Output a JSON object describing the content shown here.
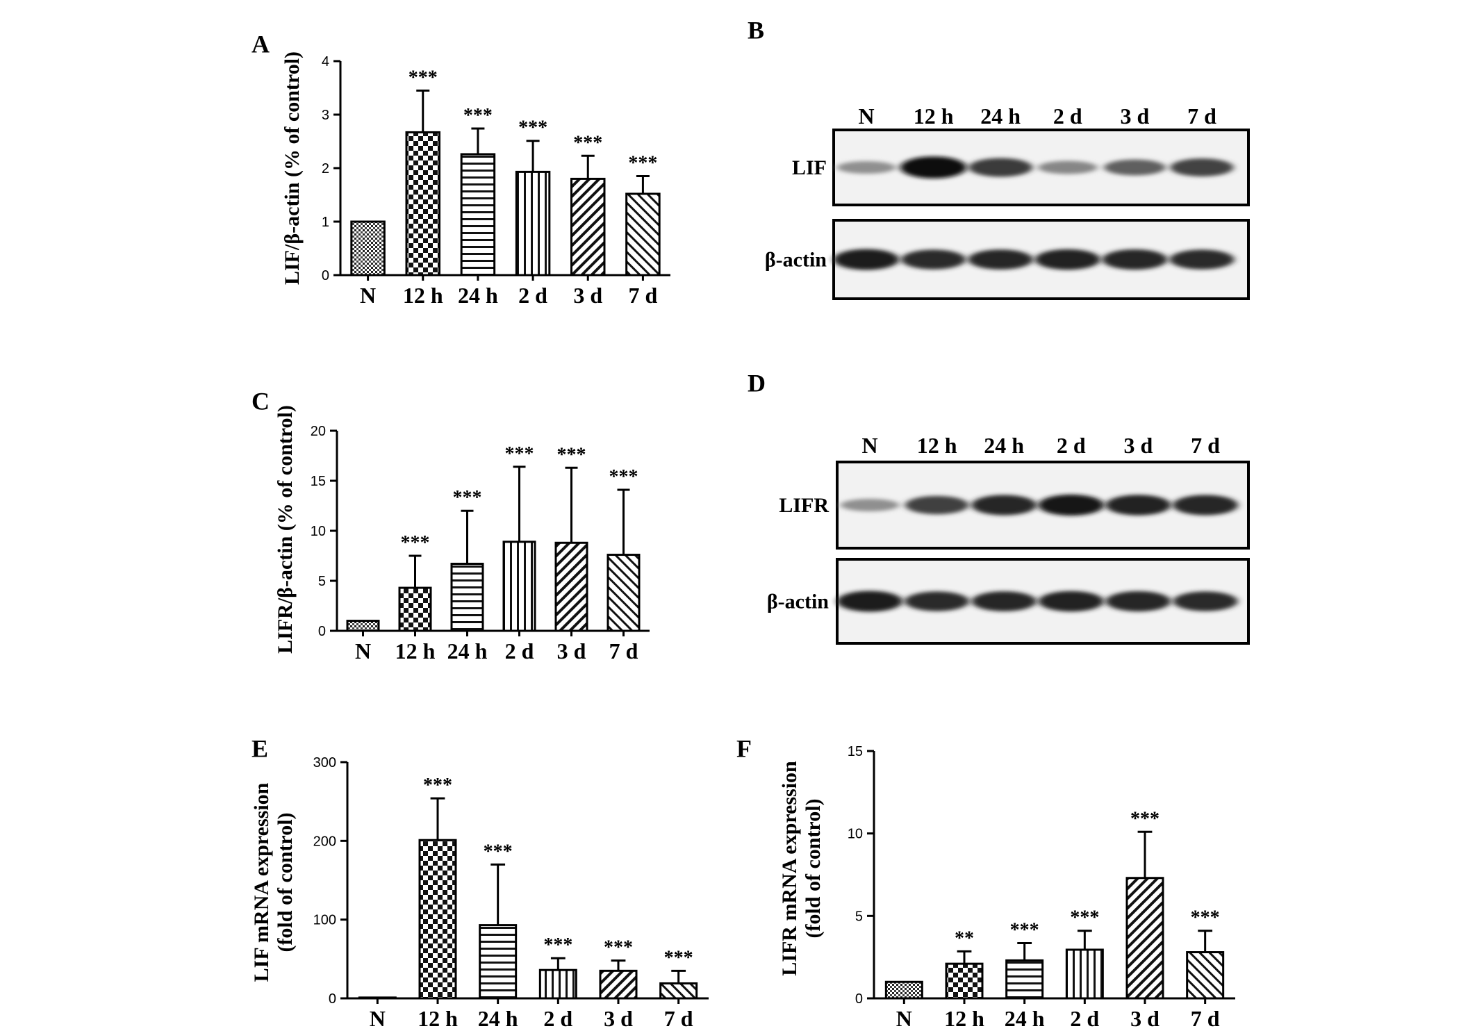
{
  "panels": [
    {
      "letter": "A",
      "chart_data": {
        "type": "bar",
        "categories": [
          "N",
          "12 h",
          "24 h",
          "2 d",
          "3 d",
          "7 d"
        ],
        "values": [
          1.0,
          2.67,
          2.26,
          1.93,
          1.8,
          1.52
        ],
        "errors": [
          0,
          0.78,
          0.48,
          0.58,
          0.43,
          0.33
        ],
        "significance": [
          "",
          "***",
          "***",
          "***",
          "***",
          "***"
        ],
        "patterns": [
          "dots",
          "checker",
          "hlines",
          "vlines",
          "diag",
          "diag-back"
        ],
        "title": "",
        "xlabel": "",
        "ylabel": "LIF/β-actin (% of control)",
        "ylim": [
          0,
          4
        ],
        "yticks": [
          0,
          1,
          2,
          3,
          4
        ],
        "grid": false
      }
    },
    {
      "letter": "C",
      "chart_data": {
        "type": "bar",
        "categories": [
          "N",
          "12 h",
          "24 h",
          "2 d",
          "3 d",
          "7 d"
        ],
        "values": [
          1.0,
          4.3,
          6.7,
          8.9,
          8.8,
          7.6
        ],
        "errors": [
          0,
          3.2,
          5.3,
          7.5,
          7.5,
          6.5
        ],
        "significance": [
          "",
          "***",
          "***",
          "***",
          "***",
          "***"
        ],
        "patterns": [
          "dots",
          "checker",
          "hlines",
          "vlines",
          "diag",
          "diag-back"
        ],
        "title": "",
        "xlabel": "",
        "ylabel": "LIFR/β-actin (% of control)",
        "ylim": [
          0,
          20
        ],
        "yticks": [
          0,
          5,
          10,
          15,
          20
        ],
        "grid": false
      }
    },
    {
      "letter": "E",
      "chart_data": {
        "type": "bar",
        "categories": [
          "N",
          "12 h",
          "24 h",
          "2 d",
          "3 d",
          "7 d"
        ],
        "values": [
          1,
          201,
          93,
          36,
          35,
          19
        ],
        "errors": [
          0,
          53,
          77,
          15,
          13,
          16
        ],
        "significance": [
          "",
          "***",
          "***",
          "***",
          "***",
          "***"
        ],
        "patterns": [
          "dots",
          "checker",
          "hlines",
          "vlines",
          "diag",
          "diag-back"
        ],
        "title": "",
        "xlabel": "",
        "ylabel_lines": [
          "LIF mRNA expression",
          "(fold of control)"
        ],
        "ylim": [
          0,
          300
        ],
        "yticks": [
          0,
          100,
          200,
          300
        ],
        "grid": false
      }
    },
    {
      "letter": "F",
      "chart_data": {
        "type": "bar",
        "categories": [
          "N",
          "12 h",
          "24 h",
          "2 d",
          "3 d",
          "7 d"
        ],
        "values": [
          1.0,
          2.1,
          2.3,
          2.95,
          7.3,
          2.8
        ],
        "errors": [
          0,
          0.75,
          1.05,
          1.15,
          2.8,
          1.3
        ],
        "significance": [
          "",
          "**",
          "***",
          "***",
          "***",
          "***"
        ],
        "patterns": [
          "dots",
          "checker",
          "hlines",
          "vlines",
          "diag",
          "diag-back"
        ],
        "title": "",
        "xlabel": "",
        "ylabel_lines": [
          "LIFR mRNA expression",
          "(fold of control)"
        ],
        "ylim": [
          0,
          15
        ],
        "yticks": [
          0,
          5,
          10,
          15
        ],
        "grid": false
      }
    }
  ],
  "blots": [
    {
      "letter": "B",
      "lanes": [
        "N",
        "12 h",
        "24 h",
        "2 d",
        "3 d",
        "7 d"
      ],
      "rows": [
        {
          "label": "LIF",
          "intensity": [
            0.3,
            0.98,
            0.75,
            0.35,
            0.55,
            0.7
          ]
        },
        {
          "label": "β-actin",
          "intensity": [
            0.9,
            0.82,
            0.84,
            0.88,
            0.86,
            0.82
          ]
        }
      ]
    },
    {
      "letter": "D",
      "lanes": [
        "N",
        "12 h",
        "24 h",
        "2 d",
        "3 d",
        "7 d"
      ],
      "rows": [
        {
          "label": "LIFR",
          "intensity": [
            0.3,
            0.72,
            0.86,
            0.92,
            0.88,
            0.86
          ]
        },
        {
          "label": "β-actin",
          "intensity": [
            0.9,
            0.82,
            0.84,
            0.88,
            0.86,
            0.82
          ]
        }
      ]
    }
  ]
}
